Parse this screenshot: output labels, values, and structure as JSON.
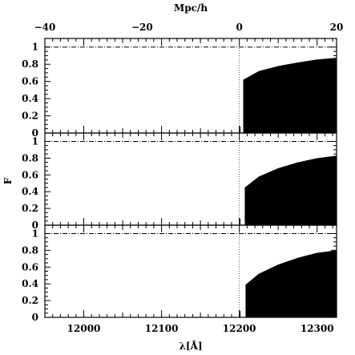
{
  "chart_data": {
    "type": "area",
    "top_axis": {
      "label": "Mpc/h",
      "range": [
        -40,
        20
      ],
      "ticks": [
        -40,
        -20,
        0,
        20
      ]
    },
    "x_axis": {
      "label": "λ[Å]",
      "range": [
        11950,
        12325
      ],
      "ticks": [
        12000,
        12100,
        12200,
        12300
      ]
    },
    "y_axis": {
      "label": "F",
      "range": [
        0,
        1.1
      ],
      "ticks": [
        0,
        0.2,
        0.4,
        0.6,
        0.8,
        1
      ]
    },
    "continuum_level": 1,
    "systemic_wavelength": 12200,
    "panels": [
      {
        "edge": 12205,
        "points": [
          [
            12205,
            0.62
          ],
          [
            12225,
            0.72
          ],
          [
            12250,
            0.78
          ],
          [
            12275,
            0.82
          ],
          [
            12300,
            0.855
          ],
          [
            12325,
            0.875
          ]
        ]
      },
      {
        "edge": 12207,
        "points": [
          [
            12207,
            0.45
          ],
          [
            12225,
            0.58
          ],
          [
            12250,
            0.68
          ],
          [
            12275,
            0.75
          ],
          [
            12300,
            0.8
          ],
          [
            12325,
            0.83
          ]
        ]
      },
      {
        "edge": 12208,
        "points": [
          [
            12208,
            0.39
          ],
          [
            12225,
            0.52
          ],
          [
            12250,
            0.63
          ],
          [
            12275,
            0.71
          ],
          [
            12300,
            0.77
          ],
          [
            12325,
            0.8
          ]
        ]
      }
    ]
  }
}
